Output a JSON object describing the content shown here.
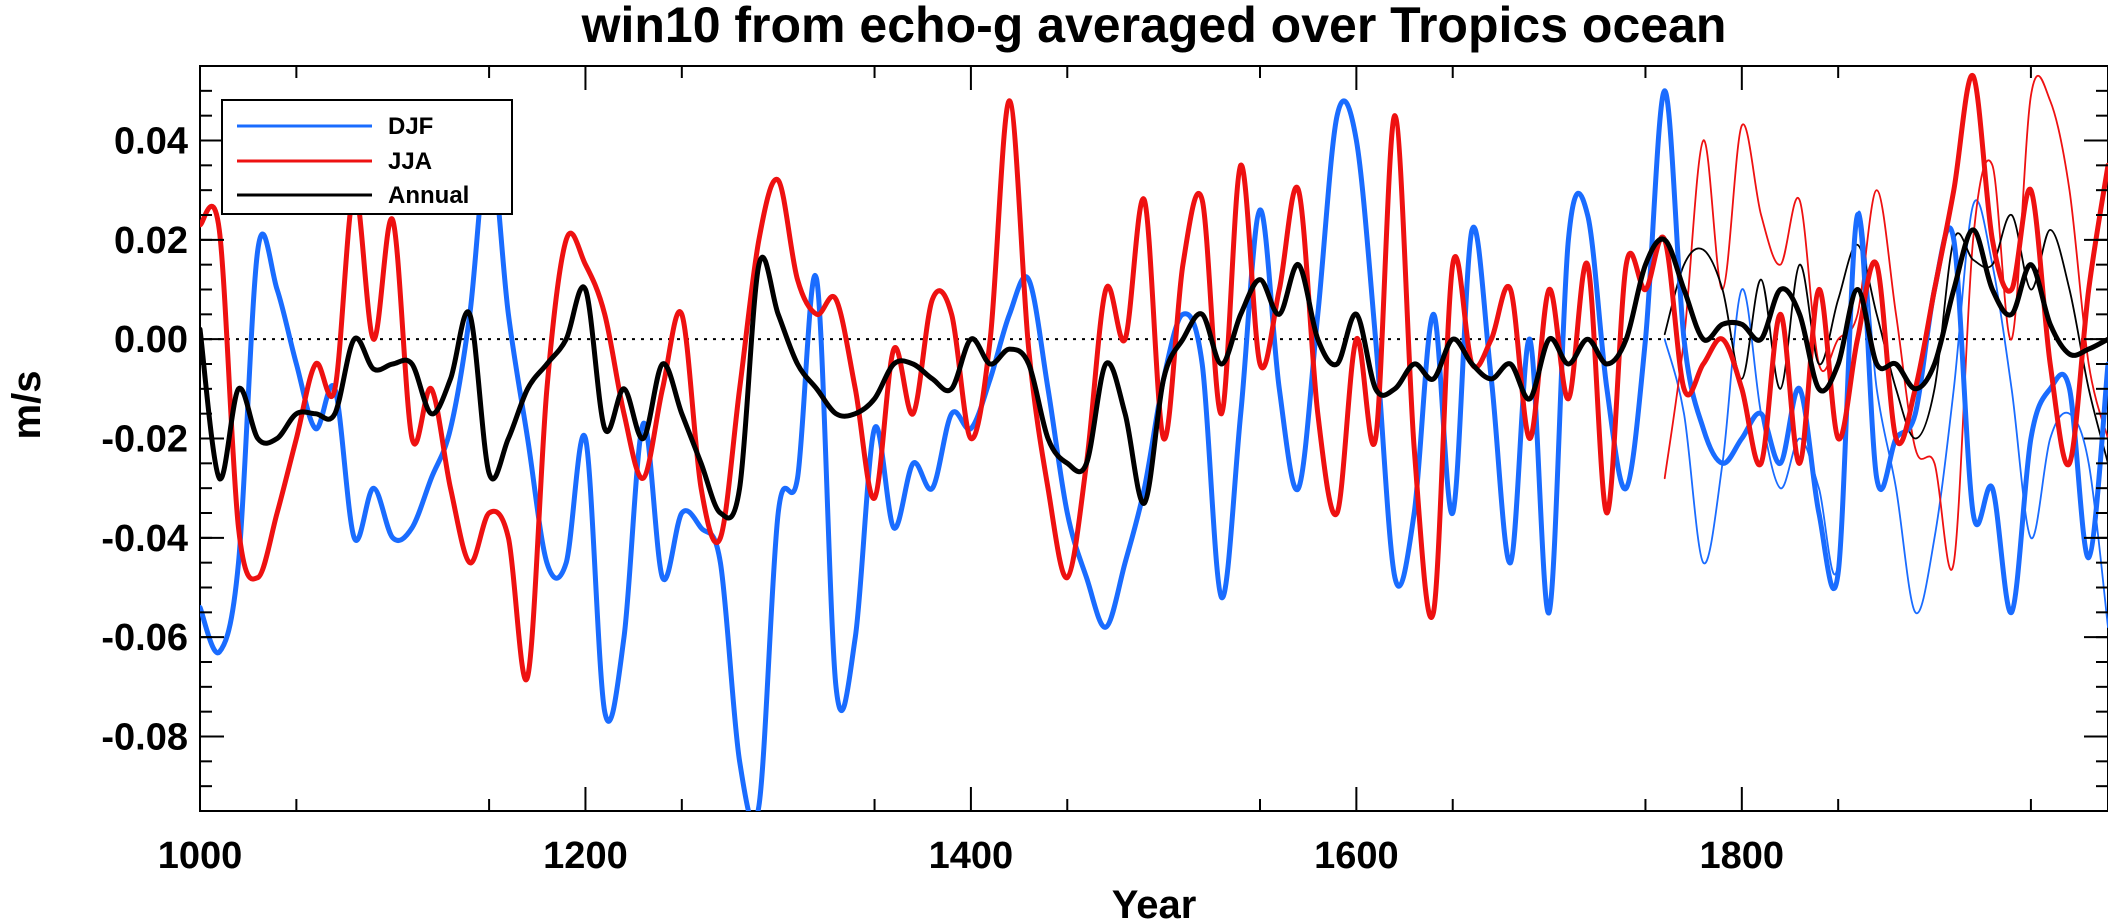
{
  "chart_data": {
    "type": "line",
    "title": "win10 from echo-g averaged over Tropics ocean",
    "xlabel": "Year",
    "ylabel": "m/s",
    "xlim": [
      1000,
      1990
    ],
    "ylim": [
      -0.095,
      0.055
    ],
    "x_ticks": [
      1000,
      1200,
      1400,
      1600,
      1800
    ],
    "x_tick_labels": [
      "1000",
      "1200",
      "1400",
      "1600",
      "1800"
    ],
    "y_ticks": [
      -0.08,
      -0.06,
      -0.04,
      -0.02,
      0.0,
      0.02,
      0.04
    ],
    "y_tick_labels": [
      "-0.08",
      "-0.06",
      "-0.04",
      "-0.02",
      "0.00",
      "0.02",
      "0.04"
    ],
    "zero_line": "dotted",
    "legend": {
      "position": "top-left",
      "entries": [
        {
          "label": "DJF",
          "color": "#1a6cff"
        },
        {
          "label": "JJA",
          "color": "#ee1111"
        },
        {
          "label": "Annual",
          "color": "#000000"
        }
      ]
    },
    "series": [
      {
        "name": "DJF",
        "style": "thick",
        "color": "#1a6cff",
        "x": [
          1000,
          1010,
          1020,
          1030,
          1040,
          1050,
          1060,
          1070,
          1080,
          1090,
          1100,
          1110,
          1120,
          1130,
          1140,
          1150,
          1160,
          1170,
          1180,
          1190,
          1200,
          1210,
          1220,
          1230,
          1240,
          1250,
          1260,
          1270,
          1280,
          1290,
          1300,
          1310,
          1320,
          1330,
          1340,
          1350,
          1360,
          1370,
          1380,
          1390,
          1400,
          1410,
          1420,
          1430,
          1440,
          1450,
          1460,
          1470,
          1480,
          1490,
          1500,
          1510,
          1520,
          1530,
          1540,
          1550,
          1560,
          1570,
          1580,
          1590,
          1600,
          1610,
          1620,
          1630,
          1640,
          1650,
          1660,
          1670,
          1680,
          1690,
          1700,
          1710,
          1720,
          1730,
          1740,
          1750,
          1760,
          1770,
          1780,
          1790,
          1800,
          1810,
          1820,
          1830,
          1840,
          1850,
          1860,
          1870,
          1880,
          1890,
          1900,
          1910,
          1920,
          1930,
          1940,
          1950,
          1960,
          1970,
          1980,
          1990
        ],
        "y": [
          -0.054,
          -0.063,
          -0.045,
          0.018,
          0.01,
          -0.005,
          -0.018,
          -0.01,
          -0.04,
          -0.03,
          -0.04,
          -0.038,
          -0.028,
          -0.018,
          0.005,
          0.04,
          0.005,
          -0.02,
          -0.045,
          -0.045,
          -0.02,
          -0.075,
          -0.06,
          -0.017,
          -0.048,
          -0.035,
          -0.038,
          -0.045,
          -0.085,
          -0.094,
          -0.035,
          -0.028,
          0.012,
          -0.07,
          -0.06,
          -0.018,
          -0.038,
          -0.025,
          -0.03,
          -0.015,
          -0.018,
          -0.008,
          0.005,
          0.012,
          -0.01,
          -0.035,
          -0.048,
          -0.058,
          -0.045,
          -0.03,
          -0.008,
          0.005,
          -0.005,
          -0.052,
          -0.015,
          0.026,
          -0.01,
          -0.03,
          0.005,
          0.045,
          0.04,
          0.0,
          -0.048,
          -0.035,
          0.005,
          -0.035,
          0.022,
          -0.008,
          -0.045,
          0.0,
          -0.055,
          0.02,
          0.025,
          -0.01,
          -0.03,
          0.0,
          0.05,
          0.0,
          -0.018,
          -0.025,
          -0.02,
          -0.015,
          -0.025,
          -0.01,
          -0.035,
          -0.047,
          0.025,
          -0.028,
          -0.02,
          -0.015,
          0.01,
          0.02,
          -0.035,
          -0.03,
          -0.055,
          -0.02,
          -0.01,
          -0.01,
          -0.044,
          -0.005
        ]
      },
      {
        "name": "JJA",
        "style": "thick",
        "color": "#ee1111",
        "x": [
          1000,
          1010,
          1020,
          1030,
          1040,
          1050,
          1060,
          1070,
          1080,
          1090,
          1100,
          1110,
          1120,
          1130,
          1140,
          1150,
          1160,
          1170,
          1180,
          1190,
          1200,
          1210,
          1220,
          1230,
          1240,
          1250,
          1260,
          1270,
          1280,
          1290,
          1300,
          1310,
          1320,
          1330,
          1340,
          1350,
          1360,
          1370,
          1380,
          1390,
          1400,
          1410,
          1420,
          1430,
          1440,
          1450,
          1460,
          1470,
          1480,
          1490,
          1500,
          1510,
          1520,
          1530,
          1540,
          1550,
          1560,
          1570,
          1580,
          1590,
          1600,
          1610,
          1620,
          1630,
          1640,
          1650,
          1660,
          1670,
          1680,
          1690,
          1700,
          1710,
          1720,
          1730,
          1740,
          1750,
          1760,
          1770,
          1780,
          1790,
          1800,
          1810,
          1820,
          1830,
          1840,
          1850,
          1860,
          1870,
          1880,
          1890,
          1900,
          1910,
          1920,
          1930,
          1940,
          1950,
          1960,
          1970,
          1980,
          1990
        ],
        "y": [
          0.023,
          0.022,
          -0.038,
          -0.048,
          -0.035,
          -0.02,
          -0.005,
          -0.01,
          0.03,
          0.0,
          0.024,
          -0.02,
          -0.01,
          -0.03,
          -0.045,
          -0.035,
          -0.04,
          -0.068,
          -0.01,
          0.02,
          0.015,
          0.005,
          -0.015,
          -0.028,
          -0.01,
          0.005,
          -0.03,
          -0.04,
          -0.01,
          0.02,
          0.032,
          0.012,
          0.005,
          0.008,
          -0.01,
          -0.032,
          -0.002,
          -0.015,
          0.008,
          0.005,
          -0.02,
          0.0,
          0.048,
          -0.002,
          -0.03,
          -0.048,
          -0.025,
          0.01,
          0.0,
          0.028,
          -0.02,
          0.015,
          0.028,
          -0.015,
          0.035,
          -0.005,
          0.01,
          0.03,
          -0.015,
          -0.035,
          0.0,
          -0.02,
          0.045,
          -0.022,
          -0.055,
          0.015,
          -0.005,
          0.0,
          0.01,
          -0.02,
          0.01,
          -0.012,
          0.015,
          -0.035,
          0.015,
          0.01,
          0.02,
          -0.01,
          -0.005,
          0.0,
          -0.01,
          -0.025,
          0.005,
          -0.025,
          0.01,
          -0.02,
          0.0,
          0.015,
          -0.02,
          -0.01,
          0.01,
          0.03,
          0.053,
          0.02,
          0.01,
          0.03,
          -0.005,
          -0.025,
          0.01,
          0.035
        ]
      },
      {
        "name": "Annual",
        "style": "thick",
        "color": "#000000",
        "x": [
          1000,
          1010,
          1020,
          1030,
          1040,
          1050,
          1060,
          1070,
          1080,
          1090,
          1100,
          1110,
          1120,
          1130,
          1140,
          1150,
          1160,
          1170,
          1180,
          1190,
          1200,
          1210,
          1220,
          1230,
          1240,
          1250,
          1260,
          1270,
          1280,
          1290,
          1300,
          1310,
          1320,
          1330,
          1340,
          1350,
          1360,
          1370,
          1380,
          1390,
          1400,
          1410,
          1420,
          1430,
          1440,
          1450,
          1460,
          1470,
          1480,
          1490,
          1500,
          1510,
          1520,
          1530,
          1540,
          1550,
          1560,
          1570,
          1580,
          1590,
          1600,
          1610,
          1620,
          1630,
          1640,
          1650,
          1660,
          1670,
          1680,
          1690,
          1700,
          1710,
          1720,
          1730,
          1740,
          1750,
          1760,
          1770,
          1780,
          1790,
          1800,
          1810,
          1820,
          1830,
          1840,
          1850,
          1860,
          1870,
          1880,
          1890,
          1900,
          1910,
          1920,
          1930,
          1940,
          1950,
          1960,
          1970,
          1980,
          1990
        ],
        "y": [
          0.002,
          -0.028,
          -0.01,
          -0.02,
          -0.02,
          -0.015,
          -0.015,
          -0.015,
          0.0,
          -0.006,
          -0.005,
          -0.005,
          -0.015,
          -0.008,
          0.005,
          -0.027,
          -0.02,
          -0.01,
          -0.005,
          0.0,
          0.01,
          -0.018,
          -0.01,
          -0.02,
          -0.005,
          -0.015,
          -0.025,
          -0.035,
          -0.03,
          0.015,
          0.005,
          -0.005,
          -0.01,
          -0.015,
          -0.015,
          -0.012,
          -0.005,
          -0.005,
          -0.008,
          -0.01,
          0.0,
          -0.005,
          -0.002,
          -0.005,
          -0.02,
          -0.025,
          -0.025,
          -0.005,
          -0.015,
          -0.033,
          -0.008,
          0.0,
          0.005,
          -0.005,
          0.005,
          0.012,
          0.005,
          0.015,
          0.0,
          -0.005,
          0.005,
          -0.01,
          -0.01,
          -0.005,
          -0.008,
          0.0,
          -0.005,
          -0.008,
          -0.005,
          -0.012,
          0.0,
          -0.005,
          0.0,
          -0.005,
          0.0,
          0.015,
          0.02,
          0.01,
          0.0,
          0.003,
          0.003,
          0.0,
          0.01,
          0.005,
          -0.01,
          -0.005,
          0.01,
          -0.005,
          -0.005,
          -0.01,
          -0.005,
          0.01,
          0.022,
          0.01,
          0.005,
          0.015,
          0.003,
          -0.003,
          -0.002,
          0.0
        ]
      },
      {
        "name": "DJF (1760-1990)",
        "style": "thin",
        "color": "#1a6cff",
        "x": [
          1760,
          1770,
          1780,
          1790,
          1800,
          1810,
          1820,
          1830,
          1840,
          1850,
          1860,
          1870,
          1880,
          1890,
          1900,
          1910,
          1920,
          1930,
          1940,
          1950,
          1960,
          1970,
          1980,
          1990
        ],
        "y": [
          0.0,
          -0.015,
          -0.045,
          -0.025,
          0.01,
          -0.015,
          -0.03,
          -0.02,
          -0.03,
          -0.045,
          0.025,
          -0.01,
          -0.03,
          -0.055,
          -0.04,
          -0.01,
          0.027,
          0.015,
          -0.01,
          -0.04,
          -0.02,
          -0.015,
          -0.025,
          -0.058
        ]
      },
      {
        "name": "JJA (1760-1990)",
        "style": "thin",
        "color": "#ee1111",
        "x": [
          1760,
          1770,
          1780,
          1790,
          1800,
          1810,
          1820,
          1830,
          1840,
          1850,
          1860,
          1870,
          1880,
          1890,
          1900,
          1910,
          1920,
          1930,
          1940,
          1950,
          1960,
          1970,
          1980,
          1990
        ],
        "y": [
          -0.028,
          0.0,
          0.04,
          0.01,
          0.043,
          0.025,
          0.015,
          0.028,
          -0.005,
          0.0,
          0.005,
          0.03,
          0.005,
          -0.022,
          -0.025,
          -0.045,
          0.02,
          0.035,
          0.0,
          0.049,
          0.048,
          0.03,
          -0.005,
          -0.02
        ]
      },
      {
        "name": "Annual (1760-1990)",
        "style": "thin",
        "color": "#000000",
        "x": [
          1760,
          1770,
          1780,
          1790,
          1800,
          1810,
          1820,
          1830,
          1840,
          1850,
          1860,
          1870,
          1880,
          1890,
          1900,
          1910,
          1920,
          1930,
          1940,
          1950,
          1960,
          1970,
          1980,
          1990
        ],
        "y": [
          0.001,
          0.015,
          0.018,
          0.01,
          -0.008,
          0.012,
          -0.01,
          0.015,
          -0.005,
          0.008,
          0.019,
          0.005,
          -0.01,
          -0.02,
          -0.01,
          0.02,
          0.016,
          0.015,
          0.025,
          0.01,
          0.022,
          0.01,
          -0.01,
          -0.025
        ]
      }
    ]
  }
}
